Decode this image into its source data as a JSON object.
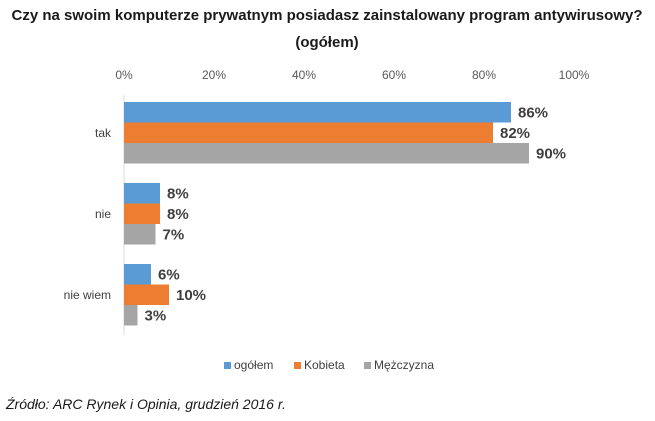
{
  "colors": {
    "series_1": "#5B9BD5",
    "series_2": "#ED7D31",
    "series_3": "#A5A5A5",
    "axis": "#D9D9D9",
    "text": "#404040"
  },
  "chart_data": {
    "type": "bar",
    "orientation": "horizontal",
    "title": "Czy na swoim komputerze prywatnym posiadasz zainstalowany program antywirusowy?",
    "subtitle": "(ogółem)",
    "categories": [
      "tak",
      "nie",
      "nie wiem"
    ],
    "series": [
      {
        "name": "ogółem",
        "values": [
          86,
          8,
          6
        ],
        "labels": [
          "86%",
          "8%",
          "6%"
        ]
      },
      {
        "name": "Kobieta",
        "values": [
          82,
          8,
          10
        ],
        "labels": [
          "82%",
          "8%",
          "10%"
        ]
      },
      {
        "name": "Mężczyzna",
        "values": [
          90,
          7,
          3
        ],
        "labels": [
          "90%",
          "7%",
          "3%"
        ]
      }
    ],
    "xlim": [
      0,
      100
    ],
    "ticks": [
      0,
      20,
      40,
      60,
      80,
      100
    ],
    "tick_labels": [
      "0%",
      "20%",
      "40%",
      "60%",
      "80%",
      "100%"
    ],
    "xlabel": "",
    "ylabel": "",
    "grid": false,
    "legend_position": "bottom"
  },
  "source": "Źródło: ARC Rynek i Opinia, grudzień 2016 r."
}
